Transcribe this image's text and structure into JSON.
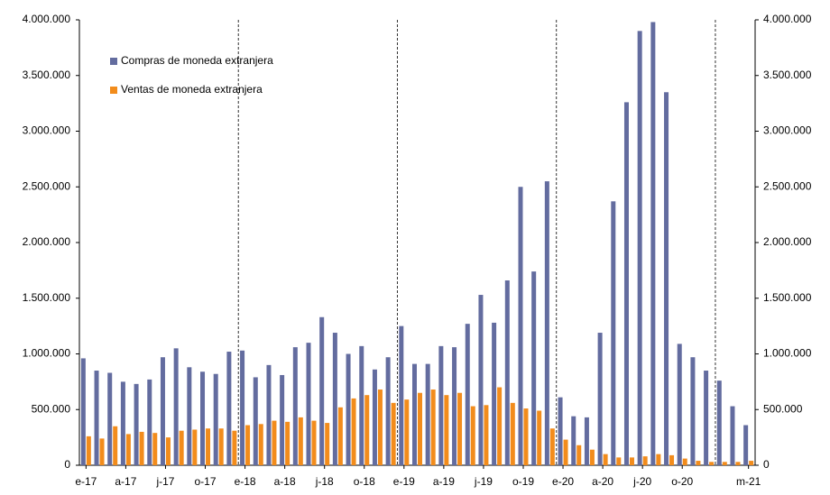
{
  "chart_data": {
    "type": "bar",
    "categories": [
      "e-17",
      null,
      null,
      "a-17",
      null,
      null,
      "j-17",
      null,
      null,
      "o-17",
      null,
      null,
      "e-18",
      null,
      null,
      "a-18",
      null,
      null,
      "j-18",
      null,
      null,
      "o-18",
      null,
      null,
      "e-19",
      null,
      null,
      "a-19",
      null,
      null,
      "j-19",
      null,
      null,
      "o-19",
      null,
      null,
      "e-20",
      null,
      null,
      "a-20",
      null,
      null,
      "j-20",
      null,
      null,
      "o-20",
      null,
      null,
      null,
      null,
      "m-21"
    ],
    "series": [
      {
        "name": "Compras de moneda extranjera",
        "color": "#636c9f",
        "values": [
          960000,
          850000,
          830000,
          750000,
          730000,
          770000,
          970000,
          1050000,
          880000,
          840000,
          820000,
          1020000,
          1030000,
          790000,
          900000,
          810000,
          1060000,
          1100000,
          1330000,
          1190000,
          1000000,
          1070000,
          860000,
          970000,
          1250000,
          910000,
          910000,
          1070000,
          1060000,
          1270000,
          1530000,
          1280000,
          1660000,
          2500000,
          1740000,
          2550000,
          610000,
          440000,
          430000,
          1190000,
          2370000,
          3260000,
          3900000,
          3980000,
          3350000,
          1090000,
          970000,
          850000,
          760000,
          530000,
          360000
        ]
      },
      {
        "name": "Ventas de moneda extranjera",
        "color": "#f28c1c",
        "values": [
          260000,
          240000,
          350000,
          280000,
          300000,
          290000,
          250000,
          310000,
          320000,
          330000,
          330000,
          310000,
          360000,
          370000,
          400000,
          390000,
          430000,
          400000,
          380000,
          520000,
          600000,
          630000,
          680000,
          560000,
          590000,
          650000,
          680000,
          630000,
          650000,
          530000,
          540000,
          700000,
          560000,
          510000,
          490000,
          330000,
          230000,
          180000,
          140000,
          100000,
          70000,
          70000,
          80000,
          100000,
          90000,
          60000,
          40000,
          30000,
          30000,
          30000,
          40000
        ]
      }
    ],
    "ylim": [
      0,
      4000000
    ],
    "yticks": [
      0,
      {
        "value": 500000,
        "label": "500.000"
      },
      {
        "value": 1000000,
        "label": "1.000.000"
      },
      {
        "value": 1500000,
        "label": "1.500.000"
      },
      {
        "value": 2000000,
        "label": "2.000.000"
      },
      {
        "value": 2500000,
        "label": "2.500.000"
      },
      {
        "value": 3000000,
        "label": "3.000.000"
      },
      {
        "value": 3500000,
        "label": "3.500.000"
      },
      {
        "value": 4000000,
        "label": "4.000.000"
      }
    ],
    "y2lim": [
      0,
      4000000
    ],
    "y2ticks": [
      0,
      {
        "value": 500000,
        "label": "500.000"
      },
      {
        "value": 1000000,
        "label": "1.000.000"
      },
      {
        "value": 1500000,
        "label": "1.500.000"
      },
      {
        "value": 2000000,
        "label": "2.000.000"
      },
      {
        "value": 2500000,
        "label": "2.500.000"
      },
      {
        "value": 3000000,
        "label": "3.000.000"
      },
      {
        "value": 3500000,
        "label": "3.500.000"
      },
      {
        "value": 4000000,
        "label": "4.000.000"
      }
    ],
    "legend": "upper left",
    "grid": false
  }
}
